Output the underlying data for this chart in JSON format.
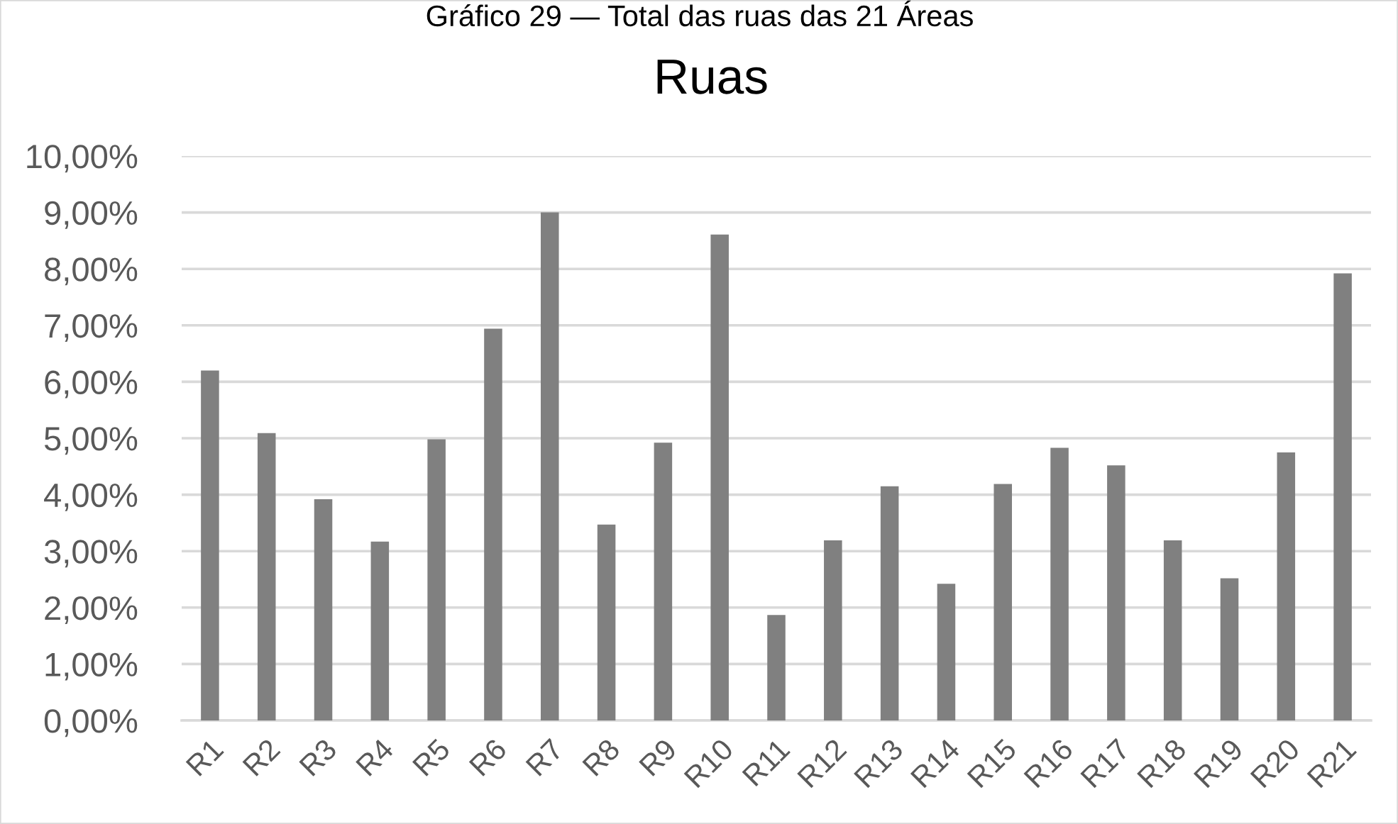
{
  "chart_data": {
    "type": "bar",
    "title": "Ruas",
    "annotations": [
      "Gráfico 29 — Total das ruas das 21 Áreas"
    ],
    "categories": [
      "R1",
      "R2",
      "R3",
      "R4",
      "R5",
      "R6",
      "R7",
      "R8",
      "R9",
      "R10",
      "R11",
      "R12",
      "R13",
      "R14",
      "R15",
      "R16",
      "R17",
      "R18",
      "R19",
      "R20",
      "R21"
    ],
    "values": [
      6.2,
      5.09,
      3.92,
      3.17,
      4.98,
      6.94,
      9.0,
      3.47,
      4.92,
      8.61,
      1.87,
      3.19,
      4.15,
      2.42,
      4.19,
      4.83,
      4.52,
      3.19,
      2.52,
      4.75,
      7.92
    ],
    "color": "#808080",
    "ylim": [
      0,
      10
    ],
    "yticks": [
      {
        "value": 0,
        "label": "0,00%"
      },
      {
        "value": 1,
        "label": "1,00%"
      },
      {
        "value": 2,
        "label": "2,00%"
      },
      {
        "value": 3,
        "label": "3,00%"
      },
      {
        "value": 4,
        "label": "4,00%"
      },
      {
        "value": 5,
        "label": "5,00%"
      },
      {
        "value": 6,
        "label": "6,00%"
      },
      {
        "value": 7,
        "label": "7,00%"
      },
      {
        "value": 8,
        "label": "8,00%"
      },
      {
        "value": 9,
        "label": "9,00%"
      },
      {
        "value": 10,
        "label": "10,00%"
      }
    ],
    "grid": "y",
    "legend": false
  }
}
